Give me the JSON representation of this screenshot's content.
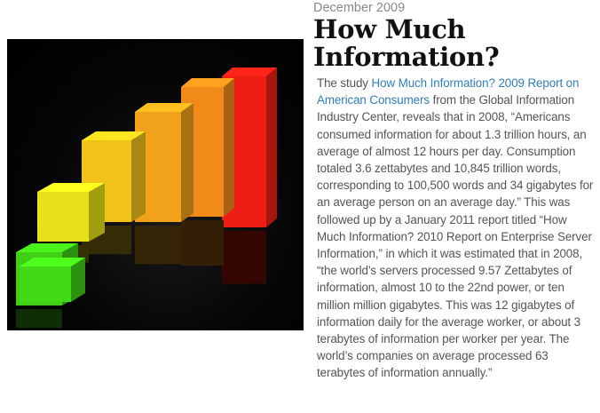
{
  "article": {
    "date": "December 2009",
    "title": "How Much Information?",
    "body": {
      "lead": "The study ",
      "link_text": "How Much Information? 2009 Report on American Consumers",
      "rest": " from the Global Information Industry Center, reveals that in 2008, “Americans consumed information for about 1.3 trillion hours, an average of almost 12 hours per day. Consumption totaled 3.6 zettabytes and 10,845 trillion words, corresponding to 100,500 words and 34 gigabytes for an average person on an average day.” This was followed up by a January 2011 report titled “How Much Information? 2010 Report on Enterprise Server Information,” in which it was estimated that in 2008, “the world’s servers processed 9.57 Zettabytes of information, almost 10 to the 22nd power, or ten million million gigabytes. This was 12 gigabytes of information daily for the average worker, or about 3 terabytes of information per worker per year. The world’s companies on average processed 63 terabytes of information annually.”"
    }
  },
  "illustration": {
    "bar_colors": [
      "#3fcf16",
      "#e8e21a",
      "#f0c21a",
      "#f1a21a",
      "#f28a1a",
      "#ee1e14"
    ]
  }
}
